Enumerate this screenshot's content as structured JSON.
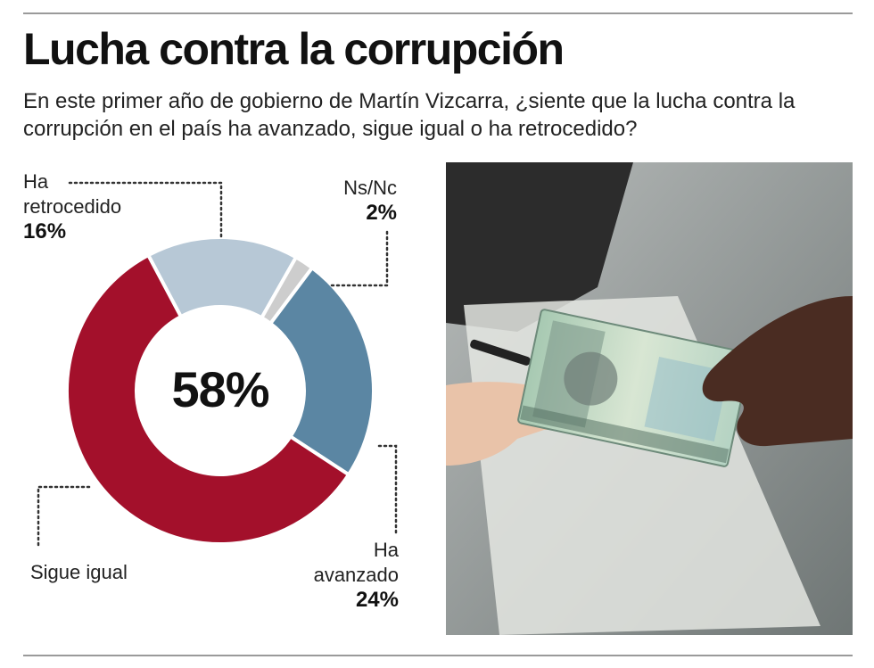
{
  "title": "Lucha contra la corrupción",
  "subtitle": "En este primer año de gobierno de Martín Vizcarra, ¿siente que la lucha contra la corrupción en el país ha avanzado, sigue igual o ha retrocedido?",
  "chart_data": {
    "type": "pie",
    "variant": "donut",
    "center_label": "58%",
    "slices": [
      {
        "label": "Ha retrocedido",
        "value": 16,
        "value_label": "16%",
        "color": "#b7c8d6"
      },
      {
        "label": "Ns/Nc",
        "value": 2,
        "value_label": "2%",
        "color": "#cdcdcd"
      },
      {
        "label": "Ha avanzado",
        "value": 24,
        "value_label": "24%",
        "color": "#5b86a3"
      },
      {
        "label": "Sigue igual",
        "value": 58,
        "value_label": "",
        "color": "#a3102b"
      }
    ]
  },
  "labels": {
    "retro_line1": "Ha",
    "retro_line2": "retrocedido",
    "retro_pct": "16%",
    "ns_line1": "Ns/Nc",
    "ns_pct": "2%",
    "sigue": "Sigue igual",
    "av_line1": "Ha",
    "av_line2": "avanzado",
    "av_pct": "24%"
  }
}
